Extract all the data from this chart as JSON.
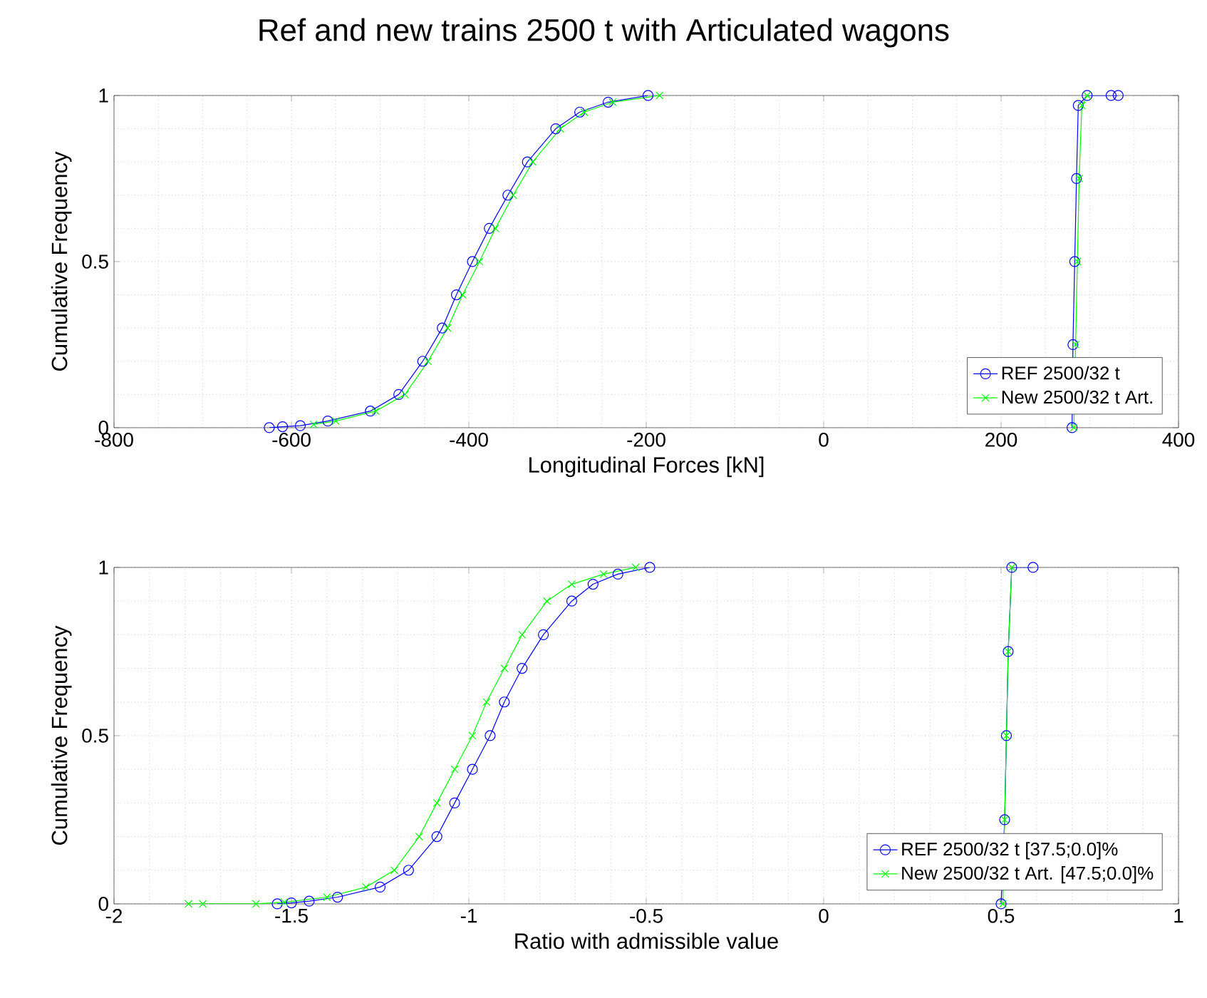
{
  "chart_data": [
    {
      "type": "line",
      "title": "Ref and new trains 2500 t with Articulated wagons",
      "xlabel": "Longitudinal Forces [kN]",
      "ylabel": "Cumulative Frequency",
      "xlim": [
        -800,
        400
      ],
      "ylim": [
        0,
        1
      ],
      "xticks": [
        -800,
        -600,
        -400,
        -200,
        0,
        200,
        400
      ],
      "yticks": [
        0,
        0.5,
        1
      ],
      "grid": true,
      "legend": "bottom right",
      "series": [
        {
          "name": "REF 2500/32 t",
          "color": "#0000ff",
          "marker": "circle",
          "x": [
            -625,
            -610,
            -590,
            -559,
            -511,
            -479,
            -452,
            -430,
            -414,
            -396,
            -377,
            -356,
            -334,
            -302,
            -275,
            -243,
            -198,
            null,
            280,
            281,
            283,
            285,
            287,
            297,
            324,
            332
          ],
          "values": [
            0,
            0.003,
            0.006,
            0.02,
            0.05,
            0.1,
            0.2,
            0.3,
            0.4,
            0.5,
            0.6,
            0.7,
            0.8,
            0.9,
            0.95,
            0.98,
            1,
            null,
            0,
            0.25,
            0.5,
            0.75,
            0.97,
            1,
            1,
            1
          ]
        },
        {
          "name": "New 2500/32 t Art.",
          "color": "#00ff00",
          "marker": "cross",
          "x": [
            -575,
            -550,
            -505,
            -472,
            -446,
            -424,
            -407,
            -388,
            -370,
            -350,
            -328,
            -297,
            -270,
            -238,
            -185,
            null,
            282,
            284,
            286,
            288,
            291,
            297
          ],
          "values": [
            0.01,
            0.02,
            0.05,
            0.1,
            0.2,
            0.3,
            0.4,
            0.5,
            0.6,
            0.7,
            0.8,
            0.9,
            0.95,
            0.98,
            1,
            null,
            0,
            0.25,
            0.5,
            0.75,
            0.97,
            1
          ]
        }
      ]
    },
    {
      "type": "line",
      "xlabel": "Ratio with admissible value",
      "ylabel": "Cumulative Frequency",
      "xlim": [
        -2,
        1
      ],
      "ylim": [
        0,
        1
      ],
      "xticks": [
        -2,
        -1.5,
        -1,
        -0.5,
        0,
        0.5,
        1
      ],
      "yticks": [
        0,
        0.5,
        1
      ],
      "grid": true,
      "legend": "bottom right",
      "series": [
        {
          "name": "REF 2500/32 t [37.5;0.0]%",
          "color": "#0000ff",
          "marker": "circle",
          "x": [
            -1.54,
            -1.5,
            -1.45,
            -1.37,
            -1.25,
            -1.17,
            -1.09,
            -1.04,
            -0.99,
            -0.94,
            -0.9,
            -0.85,
            -0.79,
            -0.71,
            -0.65,
            -0.58,
            -0.49,
            null,
            0.5,
            0.51,
            0.515,
            0.52,
            0.53,
            0.59
          ],
          "values": [
            0,
            0.003,
            0.008,
            0.02,
            0.05,
            0.1,
            0.2,
            0.3,
            0.4,
            0.5,
            0.6,
            0.7,
            0.8,
            0.9,
            0.95,
            0.98,
            1,
            null,
            0,
            0.25,
            0.5,
            0.75,
            1,
            1
          ]
        },
        {
          "name": "New 2500/32 t Art. [47.5;0.0]%",
          "color": "#00ff00",
          "marker": "cross",
          "x": [
            -1.79,
            -1.75,
            -1.6,
            -1.52,
            -1.4,
            -1.29,
            -1.21,
            -1.14,
            -1.09,
            -1.04,
            -0.99,
            -0.95,
            -0.9,
            -0.85,
            -0.78,
            -0.71,
            -0.62,
            -0.53,
            null,
            0.505,
            0.51,
            0.515,
            0.52,
            0.53
          ],
          "values": [
            0,
            0,
            0,
            0.005,
            0.02,
            0.05,
            0.1,
            0.2,
            0.3,
            0.4,
            0.5,
            0.6,
            0.7,
            0.8,
            0.9,
            0.95,
            0.98,
            1,
            null,
            0,
            0.25,
            0.5,
            0.75,
            1
          ]
        }
      ]
    }
  ]
}
